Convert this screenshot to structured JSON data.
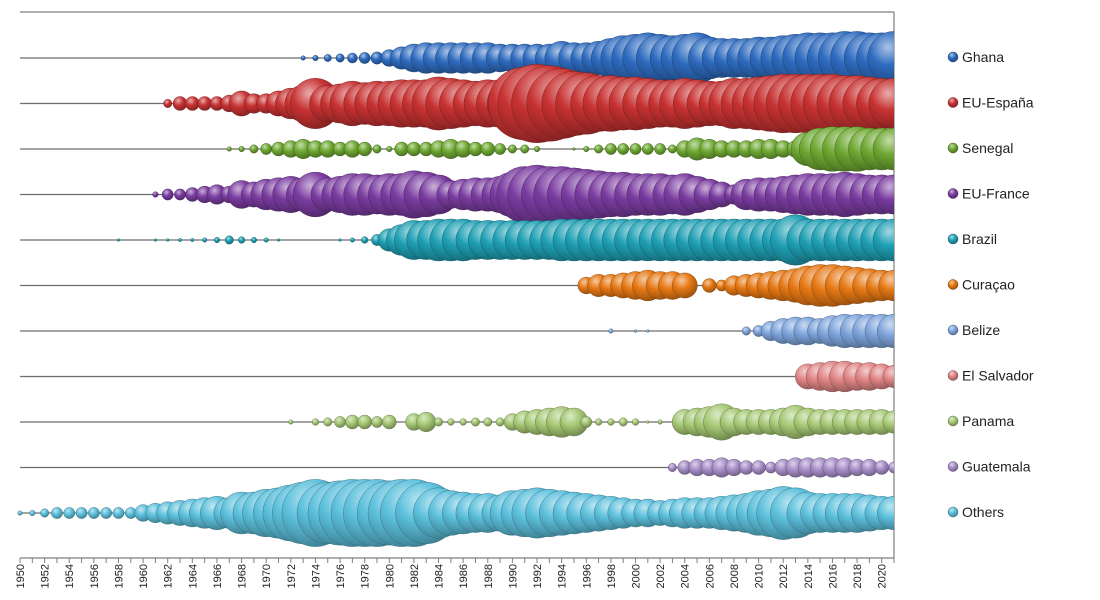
{
  "chart_data": {
    "type": "scatter",
    "title": "",
    "xlabel": "",
    "ylabel": "",
    "xlim": [
      1950,
      2021
    ],
    "x_tick_labels": [
      "1950",
      "1952",
      "1954",
      "1956",
      "1958",
      "1960",
      "1962",
      "1964",
      "1966",
      "1968",
      "1970",
      "1972",
      "1974",
      "1976",
      "1978",
      "1980",
      "1982",
      "1984",
      "1986",
      "1988",
      "1990",
      "1992",
      "1994",
      "1996",
      "1998",
      "2000",
      "2002",
      "2004",
      "2006",
      "2008",
      "2010",
      "2012",
      "2014",
      "2016",
      "2018",
      "2020"
    ],
    "grid": true,
    "legend_position": "right",
    "size_encoding": "relative size of each year's value (0-1)",
    "series": [
      {
        "name": "Ghana",
        "color": "#2e6bbf",
        "x": [
          1973,
          1974,
          1975,
          1976,
          1977,
          1978,
          1979,
          1980,
          1981,
          1982,
          1983,
          1984,
          1985,
          1986,
          1987,
          1988,
          1989,
          1990,
          1991,
          1992,
          1993,
          1994,
          1995,
          1996,
          1997,
          1998,
          1999,
          2000,
          2001,
          2002,
          2003,
          2004,
          2005,
          2006,
          2007,
          2008,
          2009,
          2010,
          2011,
          2012,
          2013,
          2014,
          2015,
          2016,
          2017,
          2018,
          2019,
          2020,
          2021
        ],
        "values": [
          0.08,
          0.1,
          0.13,
          0.15,
          0.18,
          0.2,
          0.22,
          0.3,
          0.4,
          0.5,
          0.55,
          0.55,
          0.55,
          0.55,
          0.55,
          0.55,
          0.5,
          0.5,
          0.5,
          0.5,
          0.5,
          0.6,
          0.55,
          0.55,
          0.6,
          0.7,
          0.8,
          0.85,
          0.9,
          0.85,
          0.8,
          0.85,
          0.9,
          0.75,
          0.7,
          0.7,
          0.7,
          0.75,
          0.75,
          0.8,
          0.85,
          0.9,
          0.9,
          0.9,
          0.95,
          0.95,
          0.9,
          0.9,
          0.95
        ]
      },
      {
        "name": "EU-España",
        "color": "#c83232",
        "x": [
          1962,
          1963,
          1964,
          1965,
          1966,
          1967,
          1968,
          1969,
          1970,
          1971,
          1972,
          1973,
          1974,
          1975,
          1976,
          1977,
          1978,
          1979,
          1980,
          1981,
          1982,
          1983,
          1984,
          1985,
          1986,
          1987,
          1988,
          1989,
          1990,
          1991,
          1992,
          1993,
          1994,
          1995,
          1996,
          1997,
          1998,
          1999,
          2000,
          2001,
          2002,
          2003,
          2004,
          2005,
          2006,
          2007,
          2008,
          2009,
          2010,
          2011,
          2012,
          2013,
          2014,
          2015,
          2016,
          2017,
          2018,
          2019,
          2020,
          2021
        ],
        "values": [
          0.15,
          0.25,
          0.25,
          0.25,
          0.25,
          0.3,
          0.45,
          0.35,
          0.35,
          0.45,
          0.55,
          0.65,
          0.9,
          0.65,
          0.7,
          0.8,
          0.75,
          0.8,
          0.8,
          0.85,
          0.85,
          0.85,
          0.95,
          0.9,
          0.85,
          0.8,
          0.85,
          0.85,
          0.9,
          1.3,
          1.4,
          1.35,
          1.25,
          1.15,
          1.1,
          1.0,
          1.0,
          0.95,
          0.95,
          0.9,
          0.85,
          0.85,
          0.9,
          0.85,
          0.8,
          0.8,
          0.9,
          0.9,
          0.95,
          1.0,
          1.05,
          1.05,
          1.05,
          1.05,
          1.05,
          1.0,
          1.0,
          0.95,
          0.9,
          0.9
        ]
      },
      {
        "name": "Senegal",
        "color": "#6ea832",
        "x": [
          1967,
          1968,
          1969,
          1970,
          1971,
          1972,
          1973,
          1974,
          1975,
          1976,
          1977,
          1978,
          1979,
          1980,
          1981,
          1982,
          1983,
          1984,
          1985,
          1986,
          1987,
          1988,
          1989,
          1990,
          1991,
          1992,
          1995,
          1996,
          1997,
          1998,
          1999,
          2000,
          2001,
          2002,
          2003,
          2004,
          2005,
          2006,
          2007,
          2008,
          2009,
          2010,
          2011,
          2012,
          2013,
          2014,
          2015,
          2016,
          2017,
          2018,
          2019,
          2020,
          2021
        ],
        "values": [
          0.08,
          0.1,
          0.15,
          0.2,
          0.25,
          0.3,
          0.35,
          0.3,
          0.3,
          0.25,
          0.3,
          0.25,
          0.15,
          0.1,
          0.25,
          0.25,
          0.25,
          0.3,
          0.35,
          0.3,
          0.25,
          0.25,
          0.2,
          0.15,
          0.15,
          0.1,
          0.05,
          0.1,
          0.15,
          0.2,
          0.2,
          0.2,
          0.2,
          0.2,
          0.15,
          0.3,
          0.4,
          0.35,
          0.3,
          0.3,
          0.3,
          0.35,
          0.35,
          0.3,
          0.3,
          0.6,
          0.75,
          0.8,
          0.8,
          0.8,
          0.75,
          0.75,
          0.75
        ]
      },
      {
        "name": "EU-France",
        "color": "#7a3ca0",
        "x": [
          1961,
          1962,
          1963,
          1964,
          1965,
          1966,
          1967,
          1968,
          1969,
          1970,
          1971,
          1972,
          1973,
          1974,
          1975,
          1976,
          1977,
          1978,
          1979,
          1980,
          1981,
          1982,
          1983,
          1984,
          1985,
          1986,
          1987,
          1988,
          1989,
          1990,
          1991,
          1992,
          1993,
          1994,
          1995,
          1996,
          1997,
          1998,
          1999,
          2000,
          2001,
          2002,
          2003,
          2004,
          2005,
          2006,
          2007,
          2008,
          2009,
          2010,
          2011,
          2012,
          2013,
          2014,
          2015,
          2016,
          2017,
          2018,
          2019,
          2020,
          2021
        ],
        "values": [
          0.1,
          0.2,
          0.2,
          0.25,
          0.3,
          0.35,
          0.3,
          0.5,
          0.45,
          0.55,
          0.6,
          0.65,
          0.6,
          0.8,
          0.6,
          0.65,
          0.75,
          0.75,
          0.7,
          0.75,
          0.75,
          0.85,
          0.8,
          0.7,
          0.5,
          0.55,
          0.6,
          0.6,
          0.65,
          0.8,
          1.0,
          1.05,
          1.0,
          1.0,
          0.95,
          0.9,
          0.85,
          0.8,
          0.8,
          0.75,
          0.75,
          0.75,
          0.7,
          0.75,
          0.65,
          0.55,
          0.45,
          0.35,
          0.55,
          0.6,
          0.6,
          0.65,
          0.7,
          0.75,
          0.75,
          0.75,
          0.8,
          0.75,
          0.7,
          0.7,
          0.7
        ]
      },
      {
        "name": "Brazil",
        "color": "#1fa0b4",
        "x": [
          1958,
          1961,
          1962,
          1963,
          1964,
          1965,
          1966,
          1967,
          1968,
          1969,
          1970,
          1971,
          1976,
          1977,
          1978,
          1979,
          1980,
          1981,
          1982,
          1983,
          1984,
          1985,
          1986,
          1987,
          1988,
          1989,
          1990,
          1991,
          1992,
          1993,
          1994,
          1995,
          1996,
          1997,
          1998,
          1999,
          2000,
          2001,
          2002,
          2003,
          2004,
          2005,
          2006,
          2007,
          2008,
          2009,
          2010,
          2011,
          2012,
          2013,
          2014,
          2015,
          2016,
          2017,
          2018,
          2019,
          2020,
          2021
        ],
        "values": [
          0.05,
          0.05,
          0.05,
          0.06,
          0.06,
          0.08,
          0.1,
          0.15,
          0.12,
          0.1,
          0.08,
          0.05,
          0.05,
          0.08,
          0.12,
          0.2,
          0.4,
          0.55,
          0.7,
          0.7,
          0.75,
          0.75,
          0.75,
          0.7,
          0.7,
          0.7,
          0.7,
          0.7,
          0.7,
          0.7,
          0.75,
          0.75,
          0.75,
          0.75,
          0.75,
          0.75,
          0.75,
          0.75,
          0.75,
          0.75,
          0.75,
          0.75,
          0.75,
          0.75,
          0.75,
          0.75,
          0.75,
          0.75,
          0.75,
          0.9,
          0.75,
          0.75,
          0.75,
          0.75,
          0.75,
          0.75,
          0.75,
          0.75
        ]
      },
      {
        "name": "Curaçao",
        "color": "#e67814",
        "x": [
          1996,
          1997,
          1998,
          1999,
          2000,
          2001,
          2002,
          2003,
          2004,
          2006,
          2007,
          2008,
          2009,
          2010,
          2011,
          2012,
          2013,
          2014,
          2015,
          2016,
          2017,
          2018,
          2019,
          2020,
          2021
        ],
        "values": [
          0.3,
          0.4,
          0.4,
          0.45,
          0.5,
          0.55,
          0.5,
          0.5,
          0.45,
          0.25,
          0.2,
          0.35,
          0.4,
          0.45,
          0.5,
          0.55,
          0.6,
          0.7,
          0.75,
          0.75,
          0.7,
          0.65,
          0.6,
          0.55,
          0.55
        ]
      },
      {
        "name": "Belize",
        "color": "#7ea4dc",
        "x": [
          1998,
          2000,
          2001,
          2009,
          2010,
          2011,
          2012,
          2013,
          2014,
          2015,
          2016,
          2017,
          2018,
          2019,
          2020,
          2021
        ],
        "values": [
          0.08,
          0.05,
          0.05,
          0.15,
          0.2,
          0.35,
          0.45,
          0.5,
          0.5,
          0.45,
          0.55,
          0.6,
          0.6,
          0.6,
          0.6,
          0.6
        ]
      },
      {
        "name": "El Salvador",
        "color": "#e08484",
        "x": [
          2014,
          2015,
          2016,
          2017,
          2018,
          2019,
          2020,
          2021
        ],
        "values": [
          0.45,
          0.5,
          0.55,
          0.55,
          0.5,
          0.5,
          0.45,
          0.4
        ]
      },
      {
        "name": "Panama",
        "color": "#a6c874",
        "x": [
          1972,
          1974,
          1975,
          1976,
          1977,
          1978,
          1979,
          1980,
          1982,
          1983,
          1984,
          1985,
          1986,
          1987,
          1988,
          1989,
          1990,
          1991,
          1992,
          1993,
          1994,
          1995,
          1996,
          1997,
          1998,
          1999,
          2000,
          2001,
          2002,
          2004,
          2005,
          2006,
          2007,
          2008,
          2009,
          2010,
          2011,
          2012,
          2013,
          2014,
          2015,
          2016,
          2017,
          2018,
          2019,
          2020,
          2021
        ],
        "values": [
          0.08,
          0.12,
          0.15,
          0.2,
          0.25,
          0.25,
          0.2,
          0.25,
          0.3,
          0.35,
          0.15,
          0.12,
          0.12,
          0.15,
          0.15,
          0.15,
          0.3,
          0.4,
          0.45,
          0.5,
          0.55,
          0.5,
          0.2,
          0.12,
          0.12,
          0.15,
          0.12,
          0.05,
          0.08,
          0.45,
          0.5,
          0.55,
          0.65,
          0.5,
          0.45,
          0.45,
          0.45,
          0.5,
          0.6,
          0.5,
          0.45,
          0.45,
          0.45,
          0.45,
          0.45,
          0.45,
          0.4
        ]
      },
      {
        "name": "Guatemala",
        "color": "#a88ec8",
        "x": [
          2003,
          2004,
          2005,
          2006,
          2007,
          2008,
          2009,
          2010,
          2011,
          2012,
          2013,
          2014,
          2015,
          2016,
          2017,
          2018,
          2019,
          2020,
          2021
        ],
        "values": [
          0.15,
          0.25,
          0.3,
          0.3,
          0.35,
          0.3,
          0.25,
          0.25,
          0.2,
          0.3,
          0.35,
          0.35,
          0.35,
          0.35,
          0.35,
          0.3,
          0.3,
          0.25,
          0.2
        ]
      },
      {
        "name": "Others",
        "color": "#5cc0dc",
        "x": [
          1950,
          1951,
          1952,
          1953,
          1954,
          1955,
          1956,
          1957,
          1958,
          1959,
          1960,
          1961,
          1962,
          1963,
          1964,
          1965,
          1966,
          1967,
          1968,
          1969,
          1970,
          1971,
          1972,
          1973,
          1974,
          1975,
          1976,
          1977,
          1978,
          1979,
          1980,
          1981,
          1982,
          1983,
          1984,
          1985,
          1986,
          1987,
          1988,
          1989,
          1990,
          1991,
          1992,
          1993,
          1994,
          1995,
          1996,
          1997,
          1998,
          1999,
          2000,
          2001,
          2002,
          2003,
          2004,
          2005,
          2006,
          2007,
          2008,
          2009,
          2010,
          2011,
          2012,
          2013,
          2014,
          2015,
          2016,
          2017,
          2018,
          2019,
          2020,
          2021
        ],
        "values": [
          0.08,
          0.1,
          0.15,
          0.2,
          0.2,
          0.2,
          0.2,
          0.2,
          0.2,
          0.2,
          0.3,
          0.35,
          0.4,
          0.45,
          0.5,
          0.55,
          0.6,
          0.55,
          0.75,
          0.75,
          0.85,
          0.9,
          1.0,
          1.1,
          1.2,
          1.1,
          1.15,
          1.2,
          1.2,
          1.2,
          1.15,
          1.2,
          1.2,
          1.1,
          0.9,
          0.8,
          0.75,
          0.7,
          0.7,
          0.65,
          0.8,
          0.85,
          0.9,
          0.85,
          0.8,
          0.75,
          0.7,
          0.65,
          0.6,
          0.55,
          0.5,
          0.5,
          0.45,
          0.5,
          0.55,
          0.55,
          0.55,
          0.6,
          0.65,
          0.7,
          0.8,
          0.85,
          0.95,
          0.9,
          0.75,
          0.7,
          0.7,
          0.7,
          0.7,
          0.65,
          0.6,
          0.6
        ]
      }
    ]
  }
}
